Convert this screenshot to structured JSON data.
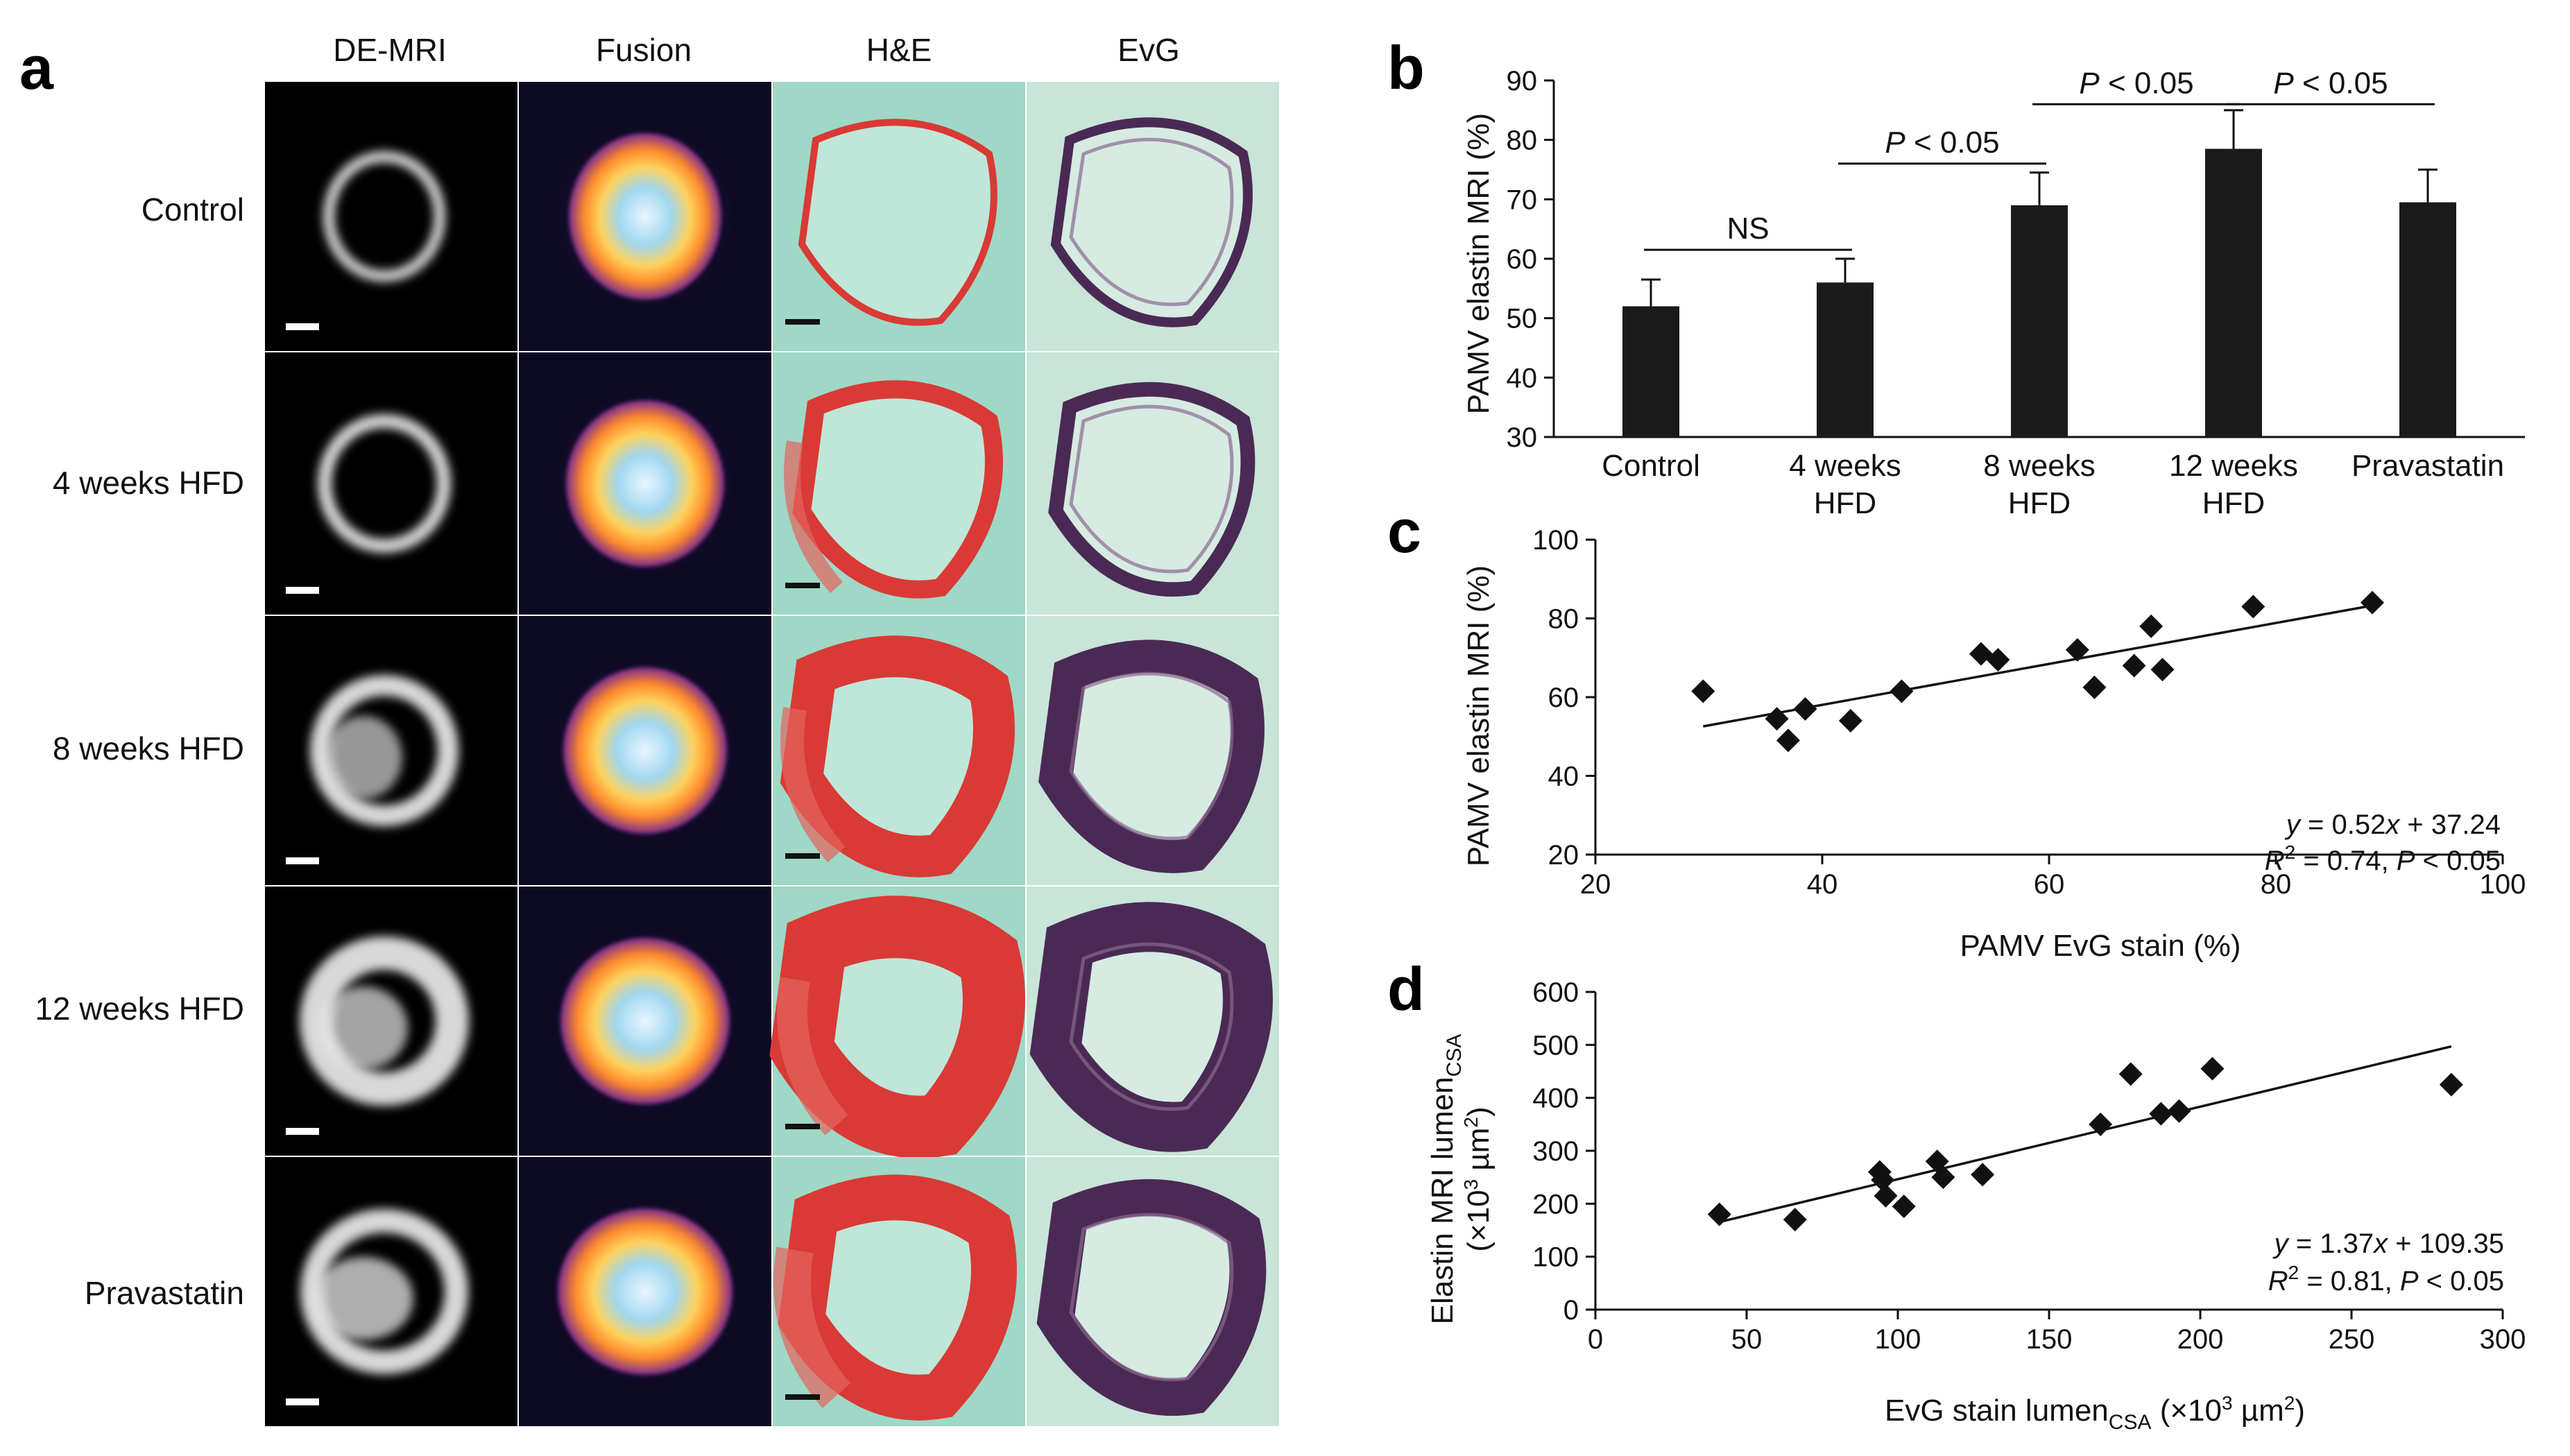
{
  "panel_a": {
    "letter": "a",
    "columns": [
      "DE-MRI",
      "Fusion",
      "H&E",
      "EvG"
    ],
    "rows": [
      "Control",
      "4 weeks HFD",
      "8 weeks HFD",
      "12 weeks HFD",
      "Pravastatin"
    ]
  },
  "chart_data": [
    {
      "panel": "b",
      "type": "bar",
      "categories": [
        "Control",
        "4 weeks HFD",
        "8 weeks HFD",
        "12 weeks HFD",
        "Pravastatin"
      ],
      "category_lines": [
        [
          "Control"
        ],
        [
          "4 weeks",
          "HFD"
        ],
        [
          "8 weeks",
          "HFD"
        ],
        [
          "12 weeks",
          "HFD"
        ],
        [
          "Pravastatin"
        ]
      ],
      "values": [
        52,
        56,
        69,
        78.5,
        69.5
      ],
      "errors": [
        4.5,
        4,
        5.5,
        6.5,
        5.5
      ],
      "ylabel": "PAMV elastin MRI (%)",
      "ylim": [
        30,
        90
      ],
      "yticks": [
        30,
        40,
        50,
        60,
        70,
        80,
        90
      ],
      "significance": [
        {
          "from": 0,
          "to": 1,
          "label": "NS",
          "y": 61.5
        },
        {
          "from": 1,
          "to": 2,
          "label": "P < 0.05",
          "y": 76
        },
        {
          "from": 2,
          "to": 3,
          "label": "P < 0.05",
          "y": 86
        },
        {
          "from": 3,
          "to": 4,
          "label": "P < 0.05",
          "y": 86
        }
      ]
    },
    {
      "panel": "c",
      "type": "scatter",
      "x": [
        29.5,
        36,
        37,
        38.5,
        42.5,
        47,
        54,
        55.5,
        62.5,
        64,
        67.5,
        69,
        70,
        78,
        88.5
      ],
      "y": [
        61.5,
        54.5,
        49,
        57,
        54,
        61.5,
        71,
        69.5,
        72,
        62.5,
        68,
        78,
        67,
        83,
        84
      ],
      "fit": {
        "slope": 0.52,
        "intercept": 37.24,
        "x_range": [
          29.5,
          88.5
        ]
      },
      "equation": "y = 0.52x + 37.24",
      "stats": "R2 = 0.74, P < 0.05",
      "xlabel": "PAMV EvG stain (%)",
      "ylabel": "PAMV elastin MRI (%)",
      "xlim": [
        20,
        100
      ],
      "ylim": [
        20,
        100
      ],
      "xticks": [
        20,
        40,
        60,
        80,
        100
      ],
      "yticks": [
        20,
        40,
        60,
        80,
        100
      ]
    },
    {
      "panel": "d",
      "type": "scatter",
      "x": [
        41,
        66,
        94,
        95,
        96,
        102,
        113,
        115,
        128,
        167,
        177,
        187,
        193,
        204,
        283
      ],
      "y": [
        180,
        170,
        260,
        245,
        215,
        195,
        280,
        250,
        255,
        350,
        445,
        370,
        375,
        455,
        425
      ],
      "fit": {
        "slope": 1.37,
        "intercept": 109.35,
        "x_range": [
          41,
          283
        ]
      },
      "equation": "y = 1.37x + 109.35",
      "stats": "R2 = 0.81, P < 0.05",
      "xlabel": "EvG stain lumenCSA (×103 µm2)",
      "ylabel": "Elastin MRI lumenCSA (×103 µm2)",
      "xlim": [
        0,
        300
      ],
      "ylim": [
        0,
        600
      ],
      "xticks": [
        0,
        50,
        100,
        150,
        200,
        250,
        300
      ],
      "yticks": [
        0,
        100,
        200,
        300,
        400,
        500,
        600
      ]
    }
  ],
  "colors": {
    "he_background": "#9fd8c6",
    "he_stain": "#d93a36",
    "evg_background": "#c9e4d8",
    "evg_stain": "#4a2a55",
    "mri_background": "#000000",
    "fusion_hot": "#ff9a2e",
    "fusion_purple": "#6a2a8c"
  }
}
